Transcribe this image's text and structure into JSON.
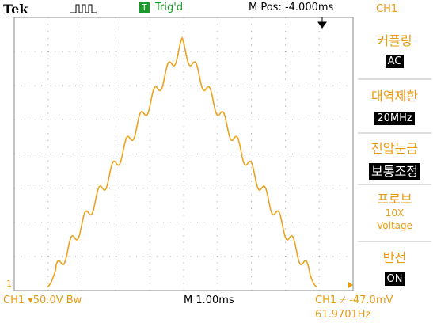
{
  "header": {
    "brand": "Tek",
    "trigger_badge": "T",
    "trigger_status": "Trig'd",
    "position": "M Pos: -4.000ms",
    "channel": "CH1"
  },
  "menu": [
    {
      "label": "커플링",
      "value": "AC"
    },
    {
      "label": "대역제한",
      "value": "20MHz"
    },
    {
      "label": "전압눈금",
      "value": "보통조정"
    },
    {
      "label": "프로브",
      "value": "10X",
      "sub": "Voltage"
    },
    {
      "label": "반전",
      "value": "ON"
    }
  ],
  "footer": {
    "channel_scale": "CH1 ▾50.0V Bw",
    "timebase": "M 1.00ms",
    "trigger": "CH1 ⌿ -47.0mV",
    "frequency": "61.9701Hz"
  }
}
